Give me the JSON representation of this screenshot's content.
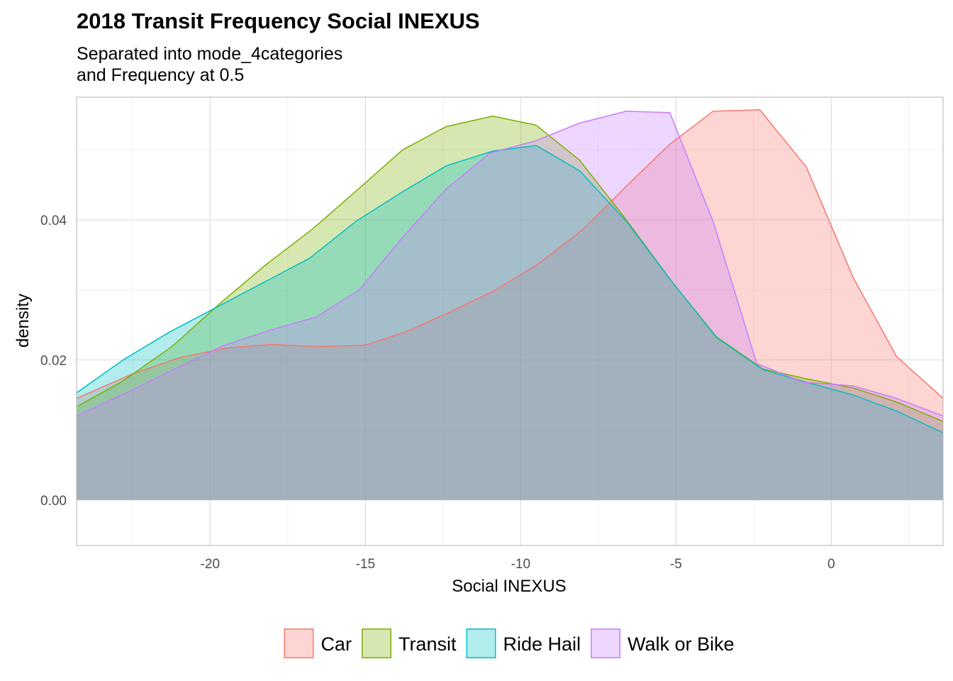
{
  "chart_data": {
    "type": "area",
    "title": "2018 Transit Frequency Social INEXUS",
    "subtitle": [
      "Separated into mode_4categories",
      "and Frequency at 0.5"
    ],
    "xlabel": "Social INEXUS",
    "ylabel": "density",
    "xlim": [
      -24.3,
      3.6
    ],
    "ylim": [
      -0.0065,
      0.0575
    ],
    "x_ticks": [
      -20,
      -15,
      -10,
      -5,
      0
    ],
    "y_ticks": [
      0.0,
      0.02,
      0.04
    ],
    "x_tick_labels": [
      "-20",
      "-15",
      "-10",
      "-5",
      "0"
    ],
    "y_tick_labels": [
      "0.00",
      "0.02",
      "0.04"
    ],
    "grid": true,
    "legend_position": "bottom",
    "fill_opacity": 0.3,
    "series": [
      {
        "name": "Car",
        "color": "#F8766D",
        "x": [
          -24.3,
          -22.5,
          -21,
          -19.5,
          -18,
          -16.5,
          -15,
          -13.7,
          -12.2,
          -10.8,
          -9.4,
          -8,
          -6.6,
          -5.2,
          -3.8,
          -2.3,
          -0.8,
          0.7,
          2.1,
          3.6
        ],
        "y": [
          0.0145,
          0.018,
          0.0203,
          0.0217,
          0.0222,
          0.0219,
          0.0221,
          0.024,
          0.027,
          0.03,
          0.0338,
          0.0386,
          0.0448,
          0.0508,
          0.0555,
          0.0557,
          0.0475,
          0.0318,
          0.0205,
          0.0145
        ]
      },
      {
        "name": "Transit",
        "color": "#7CAE00",
        "x": [
          -24.3,
          -22.8,
          -21.2,
          -19.7,
          -18.2,
          -16.7,
          -15.2,
          -13.8,
          -12.4,
          -10.9,
          -9.5,
          -8.1,
          -6.6,
          -5.1,
          -3.7,
          -2.2,
          -0.8,
          0.7,
          2.1,
          3.6
        ],
        "y": [
          0.0133,
          0.017,
          0.022,
          0.028,
          0.0336,
          0.0387,
          0.0445,
          0.05,
          0.0533,
          0.0548,
          0.0535,
          0.0485,
          0.04,
          0.031,
          0.0233,
          0.0187,
          0.0173,
          0.016,
          0.014,
          0.0112
        ]
      },
      {
        "name": "Ride Hail",
        "color": "#00BFC4",
        "x": [
          -24.3,
          -22.8,
          -21.3,
          -19.8,
          -18.3,
          -16.8,
          -15.3,
          -13.8,
          -12.4,
          -10.9,
          -9.5,
          -8.1,
          -6.6,
          -5.1,
          -3.7,
          -2.2,
          -0.8,
          0.7,
          2.1,
          3.6
        ],
        "y": [
          0.0153,
          0.02,
          0.024,
          0.0275,
          0.031,
          0.0345,
          0.0398,
          0.044,
          0.0477,
          0.0498,
          0.0506,
          0.047,
          0.0398,
          0.031,
          0.0232,
          0.0186,
          0.0168,
          0.015,
          0.0127,
          0.0096
        ]
      },
      {
        "name": "Walk or Bike",
        "color": "#C77CFF",
        "x": [
          -24.3,
          -22.6,
          -21.1,
          -19.6,
          -18.1,
          -16.6,
          -15.2,
          -13.8,
          -12.4,
          -11.0,
          -9.5,
          -8.1,
          -6.6,
          -5.2,
          -3.8,
          -2.4,
          -0.9,
          0.7,
          2.1,
          3.6
        ],
        "y": [
          0.012,
          0.0155,
          0.0188,
          0.022,
          0.0242,
          0.0261,
          0.03,
          0.0375,
          0.0444,
          0.0495,
          0.0513,
          0.0538,
          0.0555,
          0.0553,
          0.0397,
          0.0195,
          0.0168,
          0.0163,
          0.0145,
          0.012
        ]
      }
    ]
  }
}
